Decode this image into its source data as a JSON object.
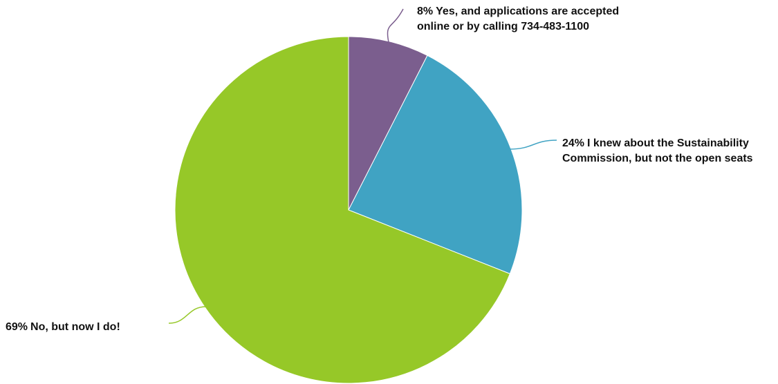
{
  "chart_data": {
    "type": "pie",
    "start_angle_deg": 0,
    "direction": "clockwise",
    "legend": "none",
    "slices": [
      {
        "percent_label": "8%",
        "label": "Yes, and applications are accepted online or by calling 734-483-1100",
        "value": 7.5,
        "color": "#7b5e8e"
      },
      {
        "percent_label": "24%",
        "label": "I knew about the Sustainability Commission, but not the open seats",
        "value": 23.5,
        "color": "#40a3c3"
      },
      {
        "percent_label": "69%",
        "label": "No, but now I do!",
        "value": 69,
        "color": "#96c828"
      }
    ]
  }
}
